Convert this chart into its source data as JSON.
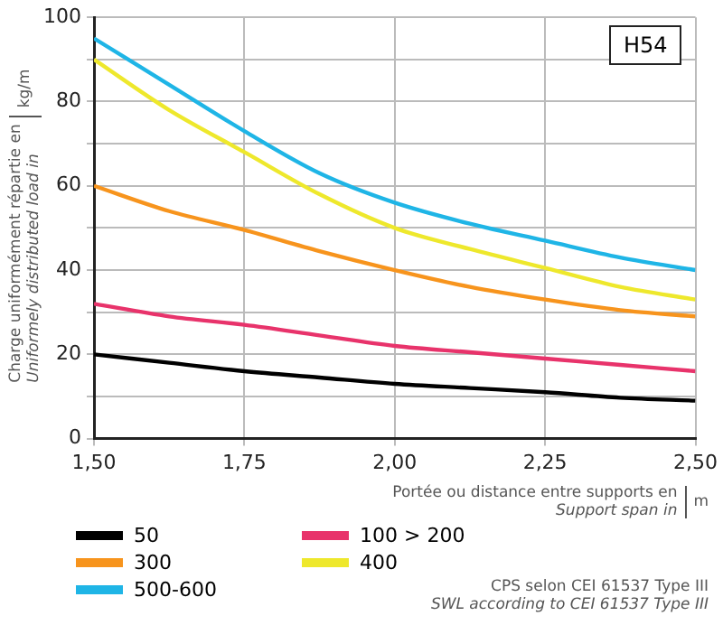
{
  "chart_data": {
    "type": "line",
    "title": "H54",
    "ylabel": "Charge uniformément répartie en\nUniformely distributed load in\nkg/m",
    "xlabel": "Portée ou distance entre supports en\nSupport span in\nm",
    "x": [
      1.5,
      1.625,
      1.75,
      1.875,
      2.0,
      2.125,
      2.25,
      2.375,
      2.5
    ],
    "series": [
      {
        "name": "50",
        "color": "#000000",
        "values": [
          20,
          18,
          16,
          14.5,
          13,
          12,
          11,
          9.7,
          9
        ]
      },
      {
        "name": "100 > 200",
        "color": "#e8336b",
        "values": [
          32,
          29,
          27,
          24.5,
          22,
          20.5,
          19,
          17.5,
          16
        ]
      },
      {
        "name": "300",
        "color": "#f7941d",
        "values": [
          60,
          54,
          49.5,
          44.5,
          40,
          36,
          33,
          30.5,
          29
        ]
      },
      {
        "name": "400",
        "color": "#eee82c",
        "values": [
          90,
          78,
          68,
          58,
          50,
          45,
          40.5,
          36,
          33
        ]
      },
      {
        "name": "500-600",
        "color": "#1fb5e6",
        "values": [
          95,
          84,
          73,
          63,
          56,
          51,
          47,
          43,
          40
        ]
      }
    ],
    "xlim": [
      1.5,
      2.5
    ],
    "xticks": [
      {
        "value": 1.5,
        "label": "1,50"
      },
      {
        "value": 1.75,
        "label": "1,75"
      },
      {
        "value": 2.0,
        "label": "2,00"
      },
      {
        "value": 2.25,
        "label": "2,25"
      },
      {
        "value": 2.5,
        "label": "2,50"
      }
    ],
    "ylim": [
      0,
      100
    ],
    "yticks": [
      0,
      {
        "value": 10,
        "label": null
      },
      20,
      {
        "value": 30,
        "label": null
      },
      40,
      {
        "value": 50,
        "label": null
      },
      60,
      {
        "value": 70,
        "label": null
      },
      80,
      {
        "value": 90,
        "label": null
      },
      100
    ],
    "grid": true,
    "legend": "bottom",
    "marker": "none",
    "line_style": "solid",
    "annotations": [
      "CPS selon CEI 61537 Type III\nSWL according to CEI 61537 Type III"
    ]
  }
}
